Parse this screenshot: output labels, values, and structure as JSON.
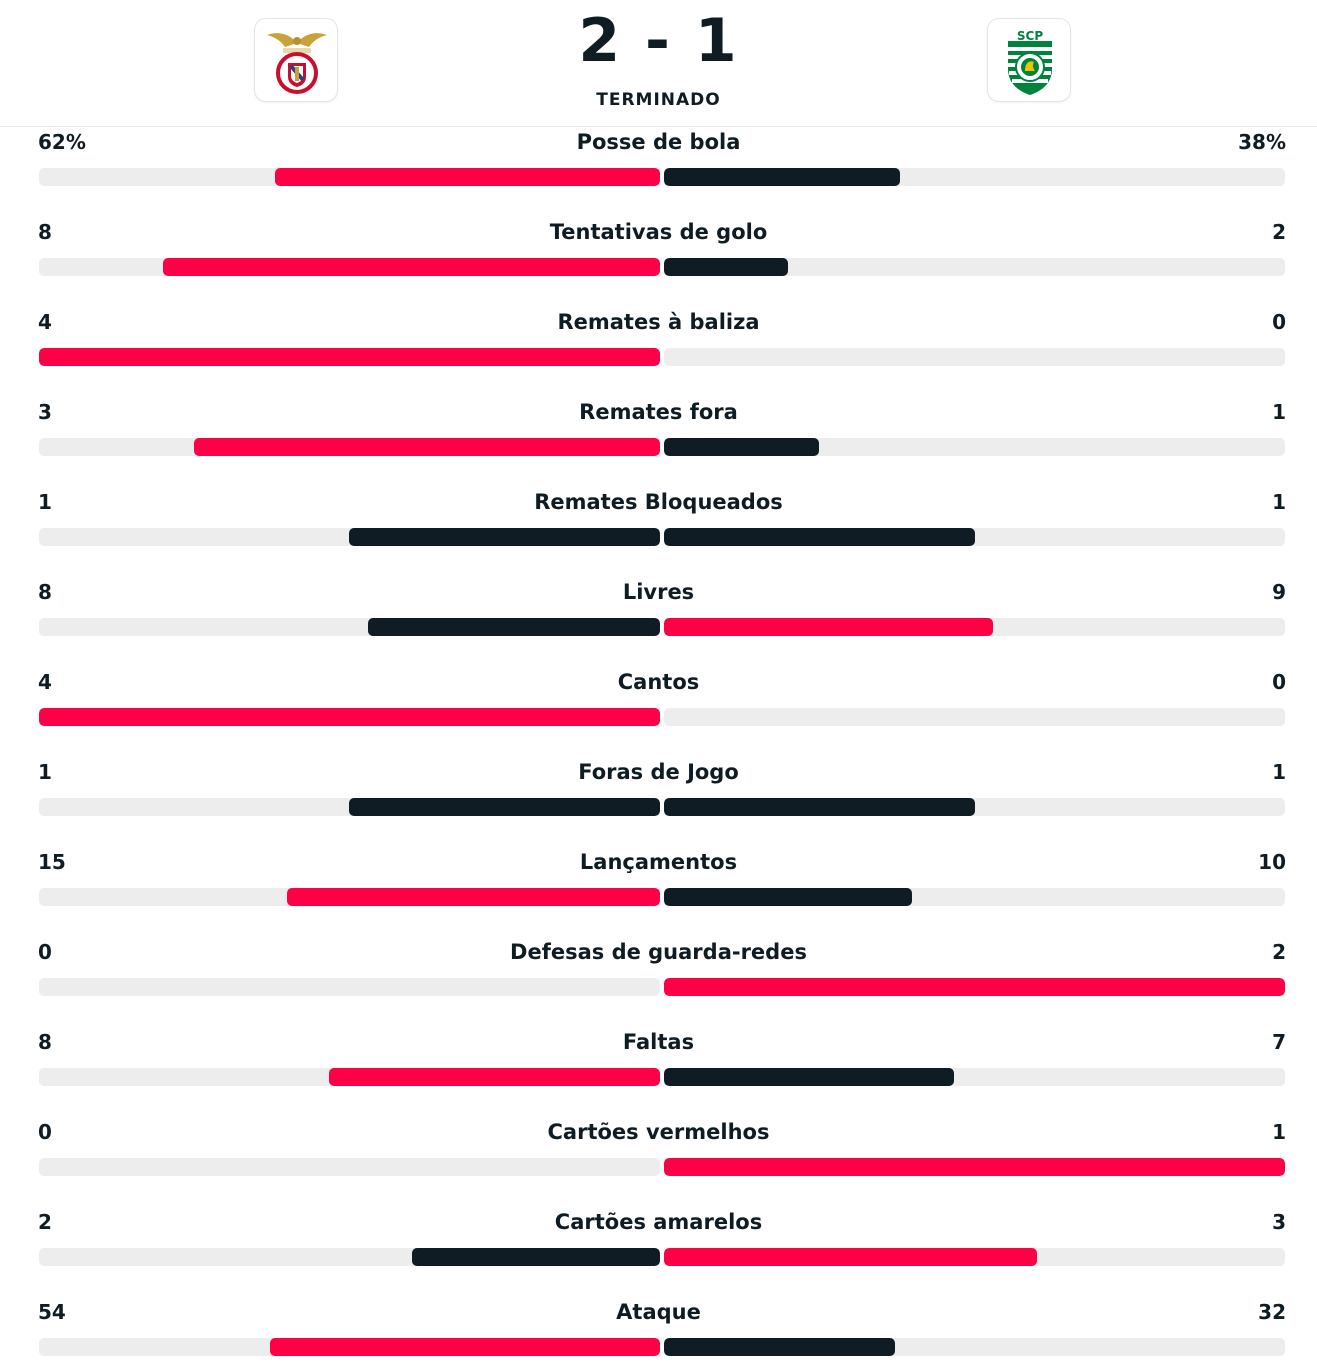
{
  "match": {
    "score": "2 - 1",
    "status": "TERMINADO",
    "home_logo_icon": "benfica-crest-icon",
    "away_logo_icon": "sporting-crest-icon",
    "away_logo_text": "SCP"
  },
  "colors": {
    "leading": "#ff0046",
    "trailing": "#0f1c24",
    "track": "#ededed"
  },
  "stats": [
    {
      "label": "Posse de bola",
      "home": "62%",
      "away": "38%",
      "home_value": 62,
      "away_value": 38
    },
    {
      "label": "Tentativas de golo",
      "home": "8",
      "away": "2",
      "home_value": 8,
      "away_value": 2
    },
    {
      "label": "Remates à baliza",
      "home": "4",
      "away": "0",
      "home_value": 4,
      "away_value": 0
    },
    {
      "label": "Remates fora",
      "home": "3",
      "away": "1",
      "home_value": 3,
      "away_value": 1
    },
    {
      "label": "Remates Bloqueados",
      "home": "1",
      "away": "1",
      "home_value": 1,
      "away_value": 1
    },
    {
      "label": "Livres",
      "home": "8",
      "away": "9",
      "home_value": 8,
      "away_value": 9
    },
    {
      "label": "Cantos",
      "home": "4",
      "away": "0",
      "home_value": 4,
      "away_value": 0
    },
    {
      "label": "Foras de Jogo",
      "home": "1",
      "away": "1",
      "home_value": 1,
      "away_value": 1
    },
    {
      "label": "Lançamentos",
      "home": "15",
      "away": "10",
      "home_value": 15,
      "away_value": 10
    },
    {
      "label": "Defesas de guarda-redes",
      "home": "0",
      "away": "2",
      "home_value": 0,
      "away_value": 2
    },
    {
      "label": "Faltas",
      "home": "8",
      "away": "7",
      "home_value": 8,
      "away_value": 7
    },
    {
      "label": "Cartões vermelhos",
      "home": "0",
      "away": "1",
      "home_value": 0,
      "away_value": 1
    },
    {
      "label": "Cartões amarelos",
      "home": "2",
      "away": "3",
      "home_value": 2,
      "away_value": 3
    },
    {
      "label": "Ataque",
      "home": "54",
      "away": "32",
      "home_value": 54,
      "away_value": 32
    }
  ]
}
